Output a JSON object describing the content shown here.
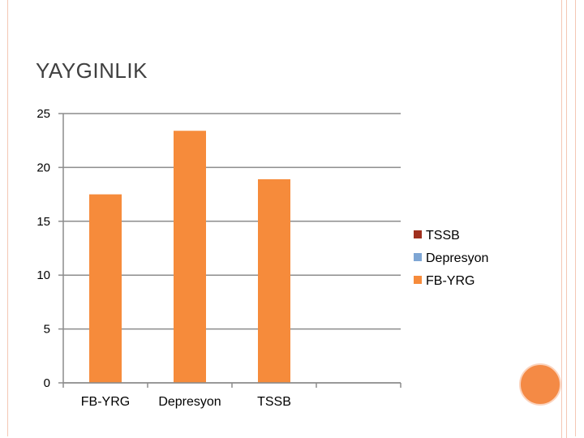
{
  "slide": {
    "title": "YAYGINLIK"
  },
  "chart_data": {
    "type": "bar",
    "title": "",
    "xlabel": "",
    "ylabel": "",
    "categories": [
      "FB-YRG",
      "Depresyon",
      "TSSB"
    ],
    "series": [
      {
        "name": "FB-YRG",
        "color": "#f68b3b",
        "values": [
          17.5,
          23.4,
          18.9
        ]
      }
    ],
    "ylim": [
      0,
      25
    ],
    "yticks": [
      0,
      5,
      10,
      15,
      20,
      25
    ],
    "grid": true,
    "legend": {
      "position": "right",
      "entries": [
        {
          "label": "TSSB",
          "color": "#a0301e"
        },
        {
          "label": "Depresyon",
          "color": "#7ea6d4"
        },
        {
          "label": "FB-YRG",
          "color": "#f68b3b"
        }
      ]
    }
  }
}
